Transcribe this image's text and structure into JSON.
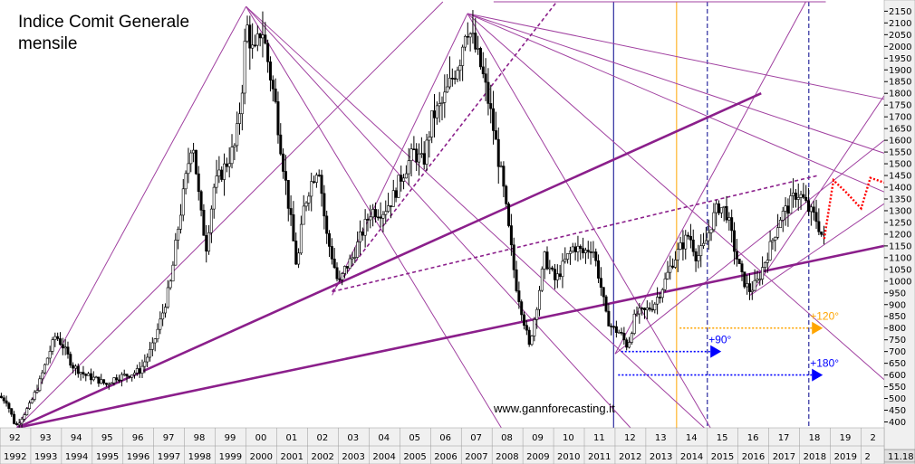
{
  "chart_data": {
    "type": "candlestick",
    "title": "Indice Comit Generale",
    "subtitle": "mensile",
    "watermark": "www.gannforecasting.it",
    "ylim": [
      375,
      2190
    ],
    "xlim": [
      1992.0,
      2020.75
    ],
    "y_ticks": [
      400,
      450,
      500,
      550,
      600,
      650,
      700,
      750,
      800,
      850,
      900,
      950,
      1000,
      1050,
      1100,
      1150,
      1200,
      1250,
      1300,
      1350,
      1400,
      1450,
      1500,
      1550,
      1600,
      1650,
      1700,
      1750,
      1800,
      1850,
      1900,
      1950,
      2000,
      2050,
      2100,
      2150
    ],
    "x_ticks_short": [
      "92",
      "93",
      "94",
      "95",
      "96",
      "97",
      "98",
      "99",
      "00",
      "01",
      "02",
      "03",
      "04",
      "05",
      "06",
      "07",
      "08",
      "09",
      "10",
      "11",
      "12",
      "13",
      "14",
      "15",
      "16",
      "17",
      "18",
      "19",
      "2"
    ],
    "x_ticks_full": [
      "1992",
      "1993",
      "1994",
      "1995",
      "1996",
      "1997",
      "1998",
      "1999",
      "2000",
      "2001",
      "2002",
      "2003",
      "2004",
      "2005",
      "2006",
      "2007",
      "2008",
      "2009",
      "2010",
      "2011",
      "2012",
      "2013",
      "2014",
      "2015",
      "2016",
      "2017",
      "2018",
      "2019",
      "2"
    ],
    "last_value_label": "11.18",
    "price_path": [
      [
        1992.0,
        510
      ],
      [
        1992.25,
        490
      ],
      [
        1992.55,
        380
      ],
      [
        1992.7,
        410
      ],
      [
        1993.0,
        470
      ],
      [
        1993.3,
        560
      ],
      [
        1993.6,
        680
      ],
      [
        1993.85,
        770
      ],
      [
        1994.1,
        720
      ],
      [
        1994.4,
        640
      ],
      [
        1994.8,
        600
      ],
      [
        1995.2,
        580
      ],
      [
        1995.5,
        560
      ],
      [
        1995.8,
        590
      ],
      [
        1996.2,
        600
      ],
      [
        1996.6,
        620
      ],
      [
        1997.0,
        720
      ],
      [
        1997.3,
        850
      ],
      [
        1997.6,
        1000
      ],
      [
        1997.8,
        1200
      ],
      [
        1998.1,
        1450
      ],
      [
        1998.3,
        1620
      ],
      [
        1998.55,
        1300
      ],
      [
        1998.75,
        1150
      ],
      [
        1999.0,
        1400
      ],
      [
        1999.4,
        1500
      ],
      [
        1999.7,
        1580
      ],
      [
        1999.9,
        1800
      ],
      [
        2000.05,
        2100
      ],
      [
        2000.3,
        1950
      ],
      [
        2000.55,
        2090
      ],
      [
        2000.8,
        1900
      ],
      [
        2001.0,
        1750
      ],
      [
        2001.25,
        1500
      ],
      [
        2001.45,
        1300
      ],
      [
        2001.7,
        1050
      ],
      [
        2001.9,
        1300
      ],
      [
        2002.1,
        1400
      ],
      [
        2002.4,
        1500
      ],
      [
        2002.65,
        1200
      ],
      [
        2002.85,
        1100
      ],
      [
        2003.05,
        980
      ],
      [
        2003.25,
        1050
      ],
      [
        2003.5,
        1100
      ],
      [
        2003.8,
        1200
      ],
      [
        2004.1,
        1300
      ],
      [
        2004.5,
        1300
      ],
      [
        2004.8,
        1350
      ],
      [
        2005.1,
        1450
      ],
      [
        2005.5,
        1550
      ],
      [
        2005.8,
        1500
      ],
      [
        2006.1,
        1700
      ],
      [
        2006.4,
        1750
      ],
      [
        2006.7,
        1850
      ],
      [
        2007.0,
        1950
      ],
      [
        2007.2,
        2100
      ],
      [
        2007.45,
        2010
      ],
      [
        2007.7,
        1900
      ],
      [
        2007.95,
        1750
      ],
      [
        2008.15,
        1600
      ],
      [
        2008.4,
        1400
      ],
      [
        2008.6,
        1200
      ],
      [
        2008.8,
        1000
      ],
      [
        2009.05,
        850
      ],
      [
        2009.25,
        720
      ],
      [
        2009.5,
        900
      ],
      [
        2009.75,
        1100
      ],
      [
        2010.1,
        1000
      ],
      [
        2010.4,
        1080
      ],
      [
        2010.7,
        1150
      ],
      [
        2011.0,
        1120
      ],
      [
        2011.3,
        1150
      ],
      [
        2011.55,
        1000
      ],
      [
        2011.75,
        850
      ],
      [
        2011.95,
        800
      ],
      [
        2012.2,
        780
      ],
      [
        2012.45,
        720
      ],
      [
        2012.7,
        860
      ],
      [
        2013.0,
        870
      ],
      [
        2013.3,
        900
      ],
      [
        2013.6,
        980
      ],
      [
        2013.9,
        1080
      ],
      [
        2014.2,
        1150
      ],
      [
        2014.45,
        1200
      ],
      [
        2014.7,
        1100
      ],
      [
        2014.95,
        1150
      ],
      [
        2015.2,
        1260
      ],
      [
        2015.4,
        1320
      ],
      [
        2015.65,
        1300
      ],
      [
        2015.9,
        1150
      ],
      [
        2016.15,
        1020
      ],
      [
        2016.4,
        960
      ],
      [
        2016.65,
        990
      ],
      [
        2016.9,
        1080
      ],
      [
        2017.15,
        1170
      ],
      [
        2017.4,
        1270
      ],
      [
        2017.7,
        1320
      ],
      [
        2017.95,
        1380
      ],
      [
        2018.15,
        1350
      ],
      [
        2018.35,
        1300
      ],
      [
        2018.6,
        1260
      ],
      [
        2018.8,
        1180
      ]
    ],
    "line_segments": [
      {
        "x1": 2000.0,
        "y1": 2170,
        "x2": 1992.55,
        "y2": 375
      },
      {
        "x1": 2000.0,
        "y1": 2170,
        "x2": 2008.3,
        "y2": 375
      },
      {
        "x1": 2000.0,
        "y1": 2170,
        "x2": 2012.5,
        "y2": 375
      },
      {
        "x1": 2000.0,
        "y1": 2170,
        "x2": 2014.9,
        "y2": 375
      },
      {
        "x1": 1992.55,
        "y1": 375,
        "x2": 2006.4,
        "y2": 2190
      },
      {
        "x1": 2002.8,
        "y1": 940,
        "x2": 2007.2,
        "y2": 2140
      },
      {
        "x1": 2007.2,
        "y1": 2140,
        "x2": 2020.75,
        "y2": 1775
      },
      {
        "x1": 2007.2,
        "y1": 2140,
        "x2": 2020.75,
        "y2": 1545
      },
      {
        "x1": 2007.2,
        "y1": 2140,
        "x2": 2020.75,
        "y2": 1380
      },
      {
        "x1": 2007.2,
        "y1": 2140,
        "x2": 2020.75,
        "y2": 580
      },
      {
        "x1": 2007.2,
        "y1": 2140,
        "x2": 2015.1,
        "y2": 375
      },
      {
        "x1": 2012.0,
        "y1": 690,
        "x2": 2018.2,
        "y2": 2190
      },
      {
        "x1": 2012.0,
        "y1": 690,
        "x2": 2020.75,
        "y2": 1600
      },
      {
        "x1": 2016.4,
        "y1": 940,
        "x2": 2020.75,
        "y2": 1790
      },
      {
        "x1": 2016.4,
        "y1": 940,
        "x2": 2020.75,
        "y2": 1330
      },
      {
        "x1": 2008.05,
        "y1": 2190,
        "x2": 2018.85,
        "y2": 2190
      }
    ],
    "thick_segments": [
      {
        "x1": 1992.55,
        "y1": 375,
        "x2": 2016.75,
        "y2": 1800
      },
      {
        "x1": 1992.55,
        "y1": 375,
        "x2": 2020.75,
        "y2": 1150
      }
    ],
    "dashed_segments": [
      {
        "x1": 2002.8,
        "y1": 955,
        "x2": 2018.6,
        "y2": 1450
      },
      {
        "x1": 2002.8,
        "y1": 955,
        "x2": 2010.1,
        "y2": 2190
      }
    ],
    "projection_path": [
      [
        2018.8,
        1180
      ],
      [
        2019.1,
        1430
      ],
      [
        2019.5,
        1380
      ],
      [
        2020.0,
        1310
      ],
      [
        2020.3,
        1440
      ],
      [
        2020.75,
        1420
      ]
    ],
    "vertical_lines": [
      {
        "x": 2011.95,
        "color": "#00008b",
        "dash": false
      },
      {
        "x": 2014.0,
        "color": "#ffa500",
        "dash": false
      },
      {
        "x": 2015.0,
        "color": "#00008b",
        "dash": true
      },
      {
        "x": 2018.3,
        "color": "#00008b",
        "dash": true
      }
    ],
    "annotations": [
      {
        "text": "+90°",
        "x": 2012.2,
        "y": 700,
        "x_end": 2015.1,
        "color": "#0000ff",
        "dot_color": "#0000ff"
      },
      {
        "text": "+180°",
        "x": 2012.1,
        "y": 600,
        "x_end": 2018.4,
        "color": "#0000ff",
        "dot_color": "#0000ff"
      },
      {
        "text": "+120°",
        "x": 2014.1,
        "y": 800,
        "x_end": 2018.4,
        "color": "#ffa500",
        "dot_color": "#ffa500"
      }
    ],
    "grid": false,
    "colors": {
      "gann_line": "#a040a0",
      "thick_line": "#8b1f8b",
      "projection": "#ff0000",
      "candles": "#000000",
      "axis_panel": "#f0f0f0"
    }
  }
}
